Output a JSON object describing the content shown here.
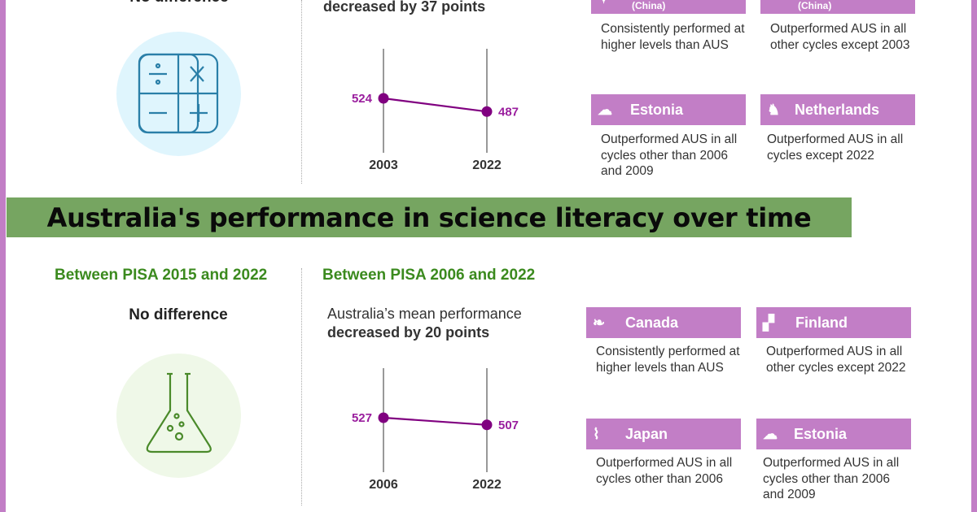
{
  "colors": {
    "frame": "#c27ec6",
    "banner": "#76a561",
    "heading_green": "#3b8a1e",
    "series": "#800080",
    "card": "#c27ec6"
  },
  "top": {
    "no_difference": "No difference",
    "change_text": "decreased by 37 points",
    "icon": "calculator-icon",
    "cards": [
      {
        "name": "",
        "subtitle": "(China)",
        "icon": "hong-kong-map-icon",
        "text": "Consistently performed at higher levels than AUS"
      },
      {
        "name": "",
        "subtitle": "(China)",
        "icon": "macao-map-icon",
        "text": "Outperformed AUS in all other cycles except 2003"
      },
      {
        "name": "Estonia",
        "icon": "estonia-map-icon",
        "text": "Outperformed AUS in all cycles other than 2006 and 2009"
      },
      {
        "name": "Netherlands",
        "icon": "netherlands-map-icon",
        "text": "Outperformed AUS in all cycles except 2022"
      }
    ]
  },
  "banner": {
    "title": "Australia's performance in science literacy over time"
  },
  "bottom": {
    "left_heading": "Between PISA 2015 and 2022",
    "no_difference": "No difference",
    "icon": "flask-icon",
    "right_heading": "Between PISA 2006 and 2022",
    "change_line1": "Australia’s mean performance",
    "change_text": "decreased by 20 points",
    "cards": [
      {
        "name": "Canada",
        "icon": "canada-map-icon",
        "text": "Consistently performed at higher levels than AUS"
      },
      {
        "name": "Finland",
        "icon": "finland-map-icon",
        "text": "Outperformed AUS in all other cycles except 2022"
      },
      {
        "name": "Japan",
        "icon": "japan-map-icon",
        "text": "Outperformed AUS in all cycles other than 2006"
      },
      {
        "name": "Estonia",
        "icon": "estonia-map-icon",
        "text": "Outperformed AUS in all cycles other than 2006 and 2009"
      }
    ]
  },
  "chart_data": [
    {
      "type": "line",
      "x": [
        "2003",
        "2022"
      ],
      "values": [
        524,
        487
      ],
      "labels": [
        "524",
        "487"
      ]
    },
    {
      "type": "line",
      "x": [
        "2006",
        "2022"
      ],
      "values": [
        527,
        507
      ],
      "labels": [
        "527",
        "507"
      ]
    }
  ]
}
